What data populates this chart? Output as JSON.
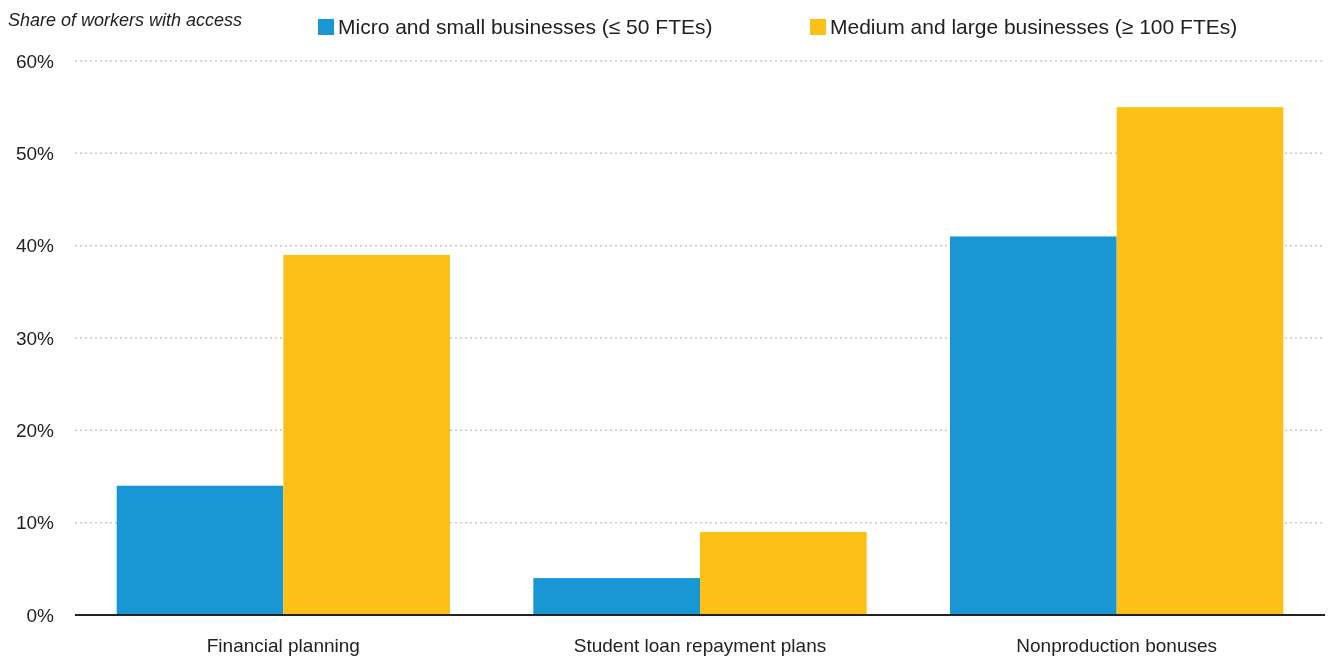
{
  "chart_data": {
    "type": "bar",
    "ylabel": "Share of workers with access",
    "categories": [
      "Financial planning",
      "Student loan repayment plans",
      "Nonproduction bonuses"
    ],
    "series": [
      {
        "name": "Micro and small businesses (≤ 50 FTEs)",
        "color": "#1897d4",
        "values": [
          14,
          4,
          41
        ]
      },
      {
        "name": "Medium and large businesses (≥ 100 FTEs)",
        "color": "#fcc016",
        "values": [
          39,
          9,
          55
        ]
      }
    ],
    "ylim": [
      0,
      60
    ],
    "yticks": [
      {
        "value": 0,
        "label": "0%"
      },
      {
        "value": 10,
        "label": "10%"
      },
      {
        "value": 20,
        "label": "20%"
      },
      {
        "value": 30,
        "label": "30%"
      },
      {
        "value": 40,
        "label": "40%"
      },
      {
        "value": 50,
        "label": "50%"
      },
      {
        "value": 60,
        "label": "60%"
      }
    ],
    "grid": "y",
    "legend": "top"
  }
}
